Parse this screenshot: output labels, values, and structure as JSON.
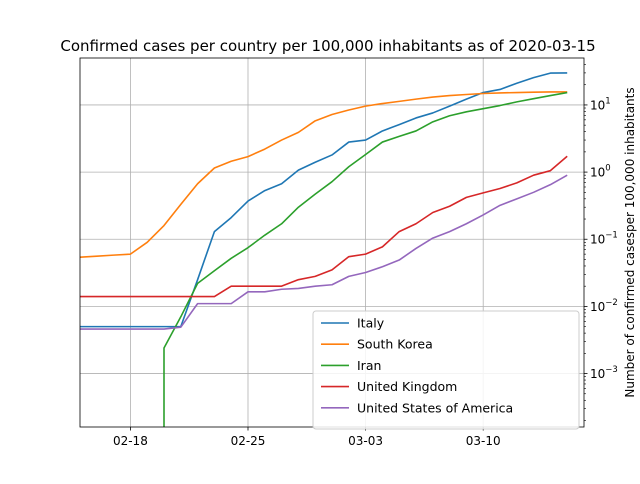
{
  "chart_data": {
    "type": "line",
    "title": "Confirmed cases per country per 100,000 inhabitants as of 2020-03-15",
    "xlabel": "",
    "ylabel": "Number of confirmed casesper 100,000 inhabitants",
    "y_scale": "log",
    "y_axis_side": "right",
    "xlim": [
      "2020-02-15",
      "2020-03-16"
    ],
    "ylim": [
      0.00016,
      50
    ],
    "x_ticks": [
      {
        "date": "2020-02-18",
        "label": "02-18"
      },
      {
        "date": "2020-02-25",
        "label": "02-25"
      },
      {
        "date": "2020-03-03",
        "label": "03-03"
      },
      {
        "date": "2020-03-10",
        "label": "03-10"
      }
    ],
    "y_ticks": [
      {
        "value": 0.001,
        "base": "10",
        "exp": "−3"
      },
      {
        "value": 0.01,
        "base": "10",
        "exp": "−2"
      },
      {
        "value": 0.1,
        "base": "10",
        "exp": "−1"
      },
      {
        "value": 1,
        "base": "10",
        "exp": "0"
      },
      {
        "value": 10,
        "base": "10",
        "exp": "1"
      }
    ],
    "grid": true,
    "legend_position": "lower-right",
    "x": [
      "2020-02-15",
      "2020-02-16",
      "2020-02-17",
      "2020-02-18",
      "2020-02-19",
      "2020-02-20",
      "2020-02-21",
      "2020-02-22",
      "2020-02-23",
      "2020-02-24",
      "2020-02-25",
      "2020-02-26",
      "2020-02-27",
      "2020-02-28",
      "2020-02-29",
      "2020-03-01",
      "2020-03-02",
      "2020-03-03",
      "2020-03-04",
      "2020-03-05",
      "2020-03-06",
      "2020-03-07",
      "2020-03-08",
      "2020-03-09",
      "2020-03-10",
      "2020-03-11",
      "2020-03-12",
      "2020-03-13",
      "2020-03-14",
      "2020-03-15"
    ],
    "series": [
      {
        "name": "Italy",
        "color": "#1f77b4",
        "values": [
          0.005,
          0.005,
          0.005,
          0.005,
          0.005,
          0.005,
          0.005,
          0.025,
          0.13,
          0.21,
          0.37,
          0.53,
          0.67,
          1.07,
          1.4,
          1.8,
          2.8,
          3.0,
          4.1,
          5.1,
          6.4,
          7.6,
          9.6,
          12.2,
          15.3,
          17.0,
          21.0,
          25.5,
          29.8,
          30.0
        ]
      },
      {
        "name": "South Korea",
        "color": "#ff7f0e",
        "values": [
          0.054,
          0.056,
          0.058,
          0.06,
          0.09,
          0.16,
          0.33,
          0.67,
          1.15,
          1.45,
          1.7,
          2.2,
          3.0,
          3.9,
          5.8,
          7.2,
          8.4,
          9.6,
          10.5,
          11.3,
          12.2,
          13.1,
          13.8,
          14.3,
          14.8,
          15.1,
          15.3,
          15.5,
          15.6,
          15.6
        ]
      },
      {
        "name": "Iran",
        "color": "#2ca02c",
        "values": [
          null,
          null,
          null,
          null,
          null,
          0.0024,
          0.007,
          0.022,
          0.034,
          0.052,
          0.075,
          0.115,
          0.17,
          0.3,
          0.47,
          0.72,
          1.2,
          1.83,
          2.8,
          3.4,
          4.1,
          5.6,
          6.9,
          7.9,
          8.8,
          9.8,
          11.1,
          12.4,
          13.8,
          15.3
        ]
      },
      {
        "name": "United Kingdom",
        "color": "#d62728",
        "values": [
          0.014,
          0.014,
          0.014,
          0.014,
          0.014,
          0.014,
          0.014,
          0.014,
          0.014,
          0.02,
          0.02,
          0.02,
          0.02,
          0.025,
          0.028,
          0.035,
          0.055,
          0.06,
          0.077,
          0.13,
          0.17,
          0.25,
          0.31,
          0.42,
          0.49,
          0.57,
          0.69,
          0.9,
          1.05,
          1.72
        ]
      },
      {
        "name": "United States of America",
        "color": "#9467bd",
        "values": [
          0.0046,
          0.0046,
          0.0046,
          0.0046,
          0.0046,
          0.0046,
          0.0049,
          0.011,
          0.011,
          0.011,
          0.0165,
          0.0165,
          0.018,
          0.0185,
          0.02,
          0.021,
          0.028,
          0.032,
          0.039,
          0.049,
          0.073,
          0.104,
          0.13,
          0.17,
          0.23,
          0.32,
          0.4,
          0.5,
          0.65,
          0.9
        ]
      }
    ]
  }
}
